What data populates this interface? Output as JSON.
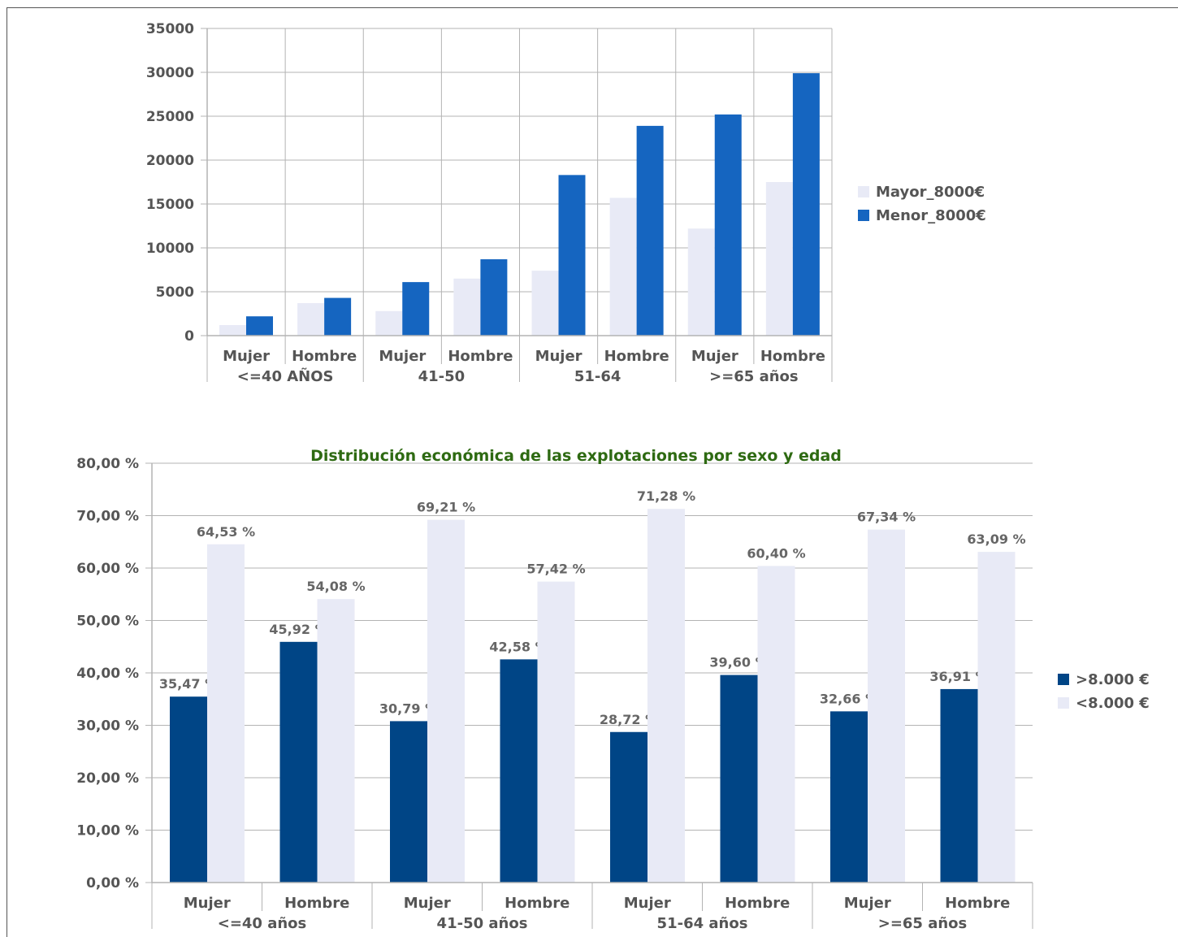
{
  "chart_data": [
    {
      "type": "bar",
      "title": "",
      "groups": [
        "<=40 AÑOS",
        "41-50",
        "51-64",
        ">=65 años"
      ],
      "categories": [
        "Mujer",
        "Hombre",
        "Mujer",
        "Hombre",
        "Mujer",
        "Hombre",
        "Mujer",
        "Hombre"
      ],
      "ylim": [
        0,
        35000
      ],
      "yticks": [
        "0",
        "5000",
        "10000",
        "15000",
        "20000",
        "25000",
        "30000",
        "35000"
      ],
      "grid": true,
      "legend": "right",
      "series": [
        {
          "name": "Mayor_8000€",
          "color": "#e8eaf6",
          "values": [
            1200,
            3700,
            2800,
            6500,
            7400,
            15700,
            12200,
            17500
          ]
        },
        {
          "name": "Menor_8000€",
          "color": "#1565c0",
          "values": [
            2200,
            4300,
            6100,
            8700,
            18300,
            23900,
            25200,
            29900
          ]
        }
      ]
    },
    {
      "type": "bar",
      "title": "Distribución económica de las explotaciones por sexo y edad",
      "groups": [
        "<=40 años",
        "41-50 años",
        "51-64 años",
        ">=65 años"
      ],
      "categories": [
        "Mujer",
        "Hombre",
        "Mujer",
        "Hombre",
        "Mujer",
        "Hombre",
        "Mujer",
        "Hombre"
      ],
      "ylim": [
        0,
        80
      ],
      "yticks": [
        "0,00 %",
        "10,00 %",
        "20,00 %",
        "30,00 %",
        "40,00 %",
        "50,00 %",
        "60,00 %",
        "70,00 %",
        "80,00 %"
      ],
      "grid": true,
      "legend": "right",
      "series": [
        {
          "name": ">8.000 €",
          "color": "#004586",
          "values": [
            35.47,
            45.92,
            30.79,
            42.58,
            28.72,
            39.6,
            32.66,
            36.91
          ],
          "labels": [
            "35,47 %",
            "45,92 %",
            "30,79 %",
            "42,58 %",
            "28,72 %",
            "39,60 %",
            "32,66 %",
            "36,91 %"
          ]
        },
        {
          "name": "<8.000 €",
          "color": "#e8eaf6",
          "values": [
            64.53,
            54.08,
            69.21,
            57.42,
            71.28,
            60.4,
            67.34,
            63.09
          ],
          "labels": [
            "64,53 %",
            "54,08 %",
            "69,21 %",
            "57,42 %",
            "71,28 %",
            "60,40 %",
            "67,34 %",
            "63,09 %"
          ]
        }
      ]
    }
  ]
}
